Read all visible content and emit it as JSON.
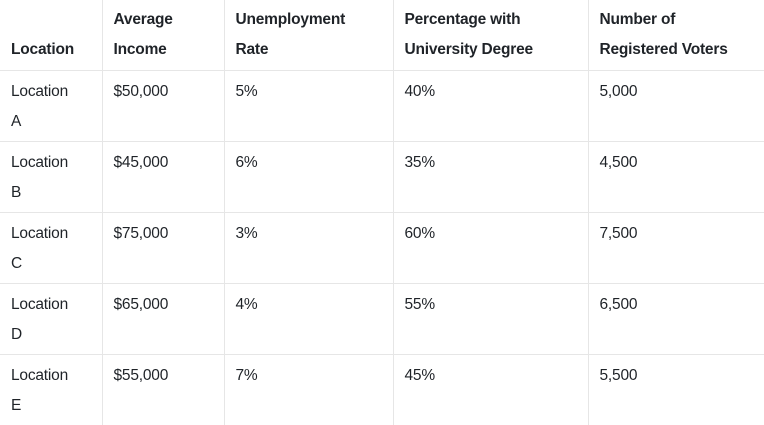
{
  "table": {
    "headers": [
      "Location",
      "Average Income",
      "Unemployment Rate",
      "Percentage with University Degree",
      "Number of Registered Voters"
    ],
    "header_lines": [
      [
        "Location"
      ],
      [
        "Average",
        "Income"
      ],
      [
        "Unemployment",
        "Rate"
      ],
      [
        "Percentage with",
        "University Degree"
      ],
      [
        "Number of",
        "Registered Voters"
      ]
    ],
    "rows": [
      {
        "location_lines": [
          "Location",
          "A"
        ],
        "income": "$50,000",
        "unemployment": "5%",
        "degree": "40%",
        "voters": "5,000"
      },
      {
        "location_lines": [
          "Location",
          "B"
        ],
        "income": "$45,000",
        "unemployment": "6%",
        "degree": "35%",
        "voters": "4,500"
      },
      {
        "location_lines": [
          "Location",
          "C"
        ],
        "income": "$75,000",
        "unemployment": "3%",
        "degree": "60%",
        "voters": "7,500"
      },
      {
        "location_lines": [
          "Location",
          "D"
        ],
        "income": "$65,000",
        "unemployment": "4%",
        "degree": "55%",
        "voters": "6,500"
      },
      {
        "location_lines": [
          "Location",
          "E"
        ],
        "income": "$55,000",
        "unemployment": "7%",
        "degree": "45%",
        "voters": "5,500"
      }
    ]
  }
}
